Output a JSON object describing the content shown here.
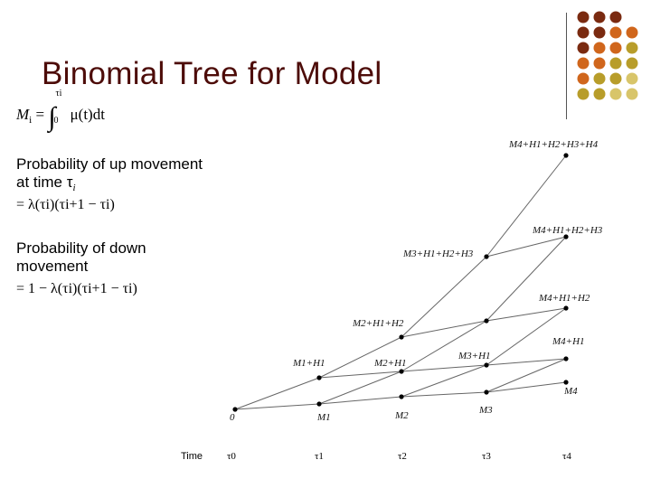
{
  "slide": {
    "title": "Binomial Tree for Model"
  },
  "formula": {
    "lhs": "M",
    "lhs_sub": "i",
    "eq": " = ",
    "upper": "τi",
    "lower": "0",
    "integrand": "μ(t)dt"
  },
  "bullets": [
    {
      "text": "Probability of up movement at time τ",
      "sub": "i",
      "formula": "= λ(τi)(τi+1 − τi)"
    },
    {
      "text": "Probability of down movement",
      "sub": "",
      "formula": "= 1 − λ(τi)(τi+1 − τi)"
    }
  ],
  "tree": {
    "origin_label": "0",
    "node_labels": [
      "M1+H1",
      "M1",
      "M2+H1+H2",
      "M2+H1",
      "M2",
      "M3+H1+H2+H3",
      "M3+H1",
      "M3",
      "M4+H1+H2+H3+H4",
      "M4+H1+H2+H3",
      "M4+H1+H2",
      "M4+H1",
      "M4"
    ],
    "time_axis_label": "Time",
    "time_ticks": [
      "τ0",
      "τ1",
      "τ2",
      "τ3",
      "τ4"
    ]
  },
  "colors": {
    "title": "#4d0c09",
    "dot_dark": "#7a2a10",
    "dot_orange": "#d0661c",
    "dot_olive": "#b89d2a",
    "dot_light": "#d8c56a"
  }
}
